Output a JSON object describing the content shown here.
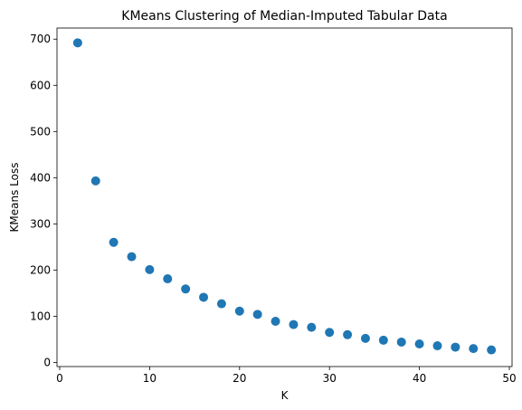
{
  "chart_data": {
    "type": "scatter",
    "title": "KMeans Clustering of Median-Imputed Tabular Data",
    "xlabel": "K",
    "ylabel": "KMeans Loss",
    "xlim": [
      -0.3,
      50.3
    ],
    "ylim": [
      -9,
      724
    ],
    "xticks": [
      0,
      10,
      20,
      30,
      40,
      50
    ],
    "yticks": [
      0,
      100,
      200,
      300,
      400,
      500,
      600,
      700
    ],
    "grid": false,
    "marker_color": "#1f77b4",
    "series": [
      {
        "x": [
          2,
          4,
          6,
          8,
          10,
          12,
          14,
          16,
          18,
          20,
          22,
          24,
          26,
          28,
          30,
          32,
          34,
          36,
          38,
          40,
          42,
          44,
          46,
          48
        ],
        "y": [
          692,
          393,
          260,
          229,
          201,
          181,
          159,
          141,
          127,
          111,
          104,
          89,
          82,
          76,
          65,
          60,
          52,
          48,
          44,
          40,
          36,
          33,
          30,
          27
        ]
      }
    ]
  }
}
